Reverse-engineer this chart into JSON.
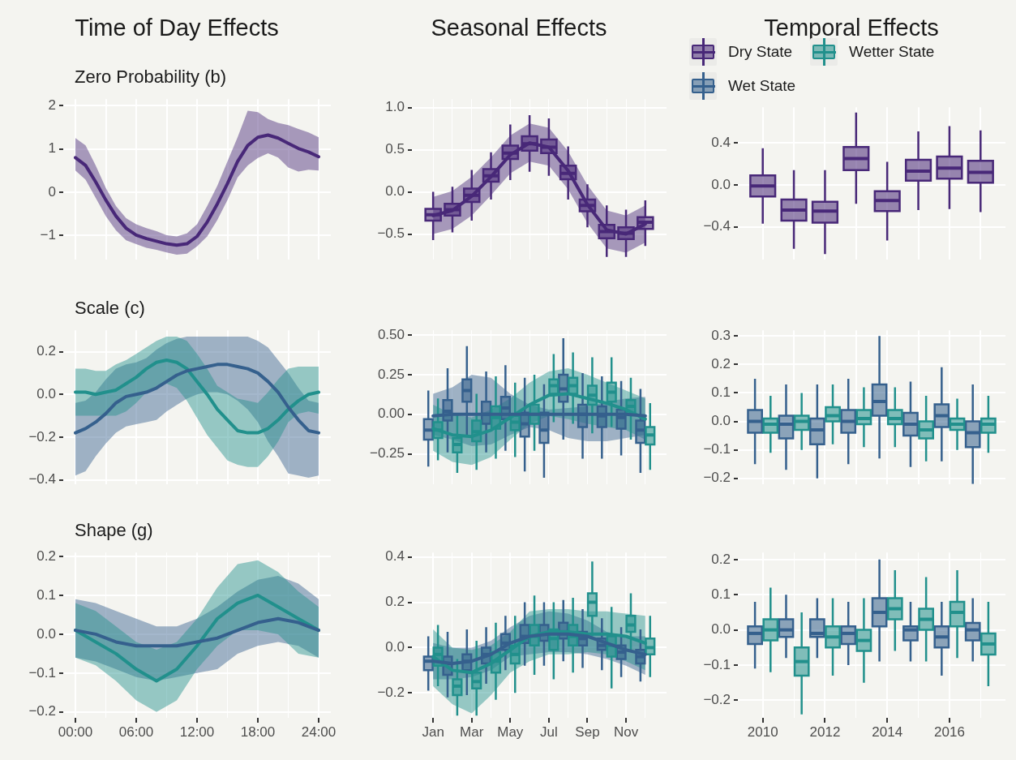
{
  "chart_data": [
    {
      "type": "line",
      "title": "Time of Day Effects",
      "subtitle": "Zero Probability (b)",
      "xlim": [
        -1.2,
        25.2
      ],
      "xticks": [
        0,
        3,
        6,
        9,
        12,
        15,
        18,
        21,
        24
      ],
      "ylim": [
        -1.55,
        2.15
      ],
      "yticks": [
        {
          "value": -1,
          "label": "−1"
        },
        0,
        1,
        2
      ],
      "tick_labels": "y",
      "grid": true,
      "series": [
        {
          "color": "#482878",
          "x": [
            0,
            1,
            2,
            3,
            4,
            5,
            6,
            7,
            8,
            9,
            10,
            11,
            12,
            13,
            14,
            15,
            16,
            17,
            18,
            19,
            20,
            21,
            22,
            23,
            24
          ],
          "values": [
            0.8,
            0.62,
            0.24,
            -0.18,
            -0.55,
            -0.83,
            -0.99,
            -1.07,
            -1.13,
            -1.19,
            -1.22,
            -1.19,
            -1.02,
            -0.69,
            -0.27,
            0.2,
            0.71,
            1.08,
            1.27,
            1.32,
            1.25,
            1.13,
            1.01,
            0.93,
            0.82
          ],
          "lower": [
            0.5,
            0.29,
            -0.13,
            -0.55,
            -0.88,
            -1.11,
            -1.2,
            -1.28,
            -1.33,
            -1.39,
            -1.44,
            -1.42,
            -1.25,
            -1.02,
            -0.64,
            -0.18,
            0.34,
            0.62,
            0.79,
            0.9,
            0.8,
            0.57,
            0.48,
            0.52,
            0.5
          ],
          "upper": [
            1.25,
            1.08,
            0.62,
            0.1,
            -0.32,
            -0.6,
            -0.74,
            -0.83,
            -0.9,
            -0.99,
            -1.02,
            -0.95,
            -0.74,
            -0.32,
            0.15,
            0.71,
            1.27,
            1.88,
            1.85,
            1.69,
            1.6,
            1.55,
            1.46,
            1.38,
            1.27
          ]
        }
      ]
    },
    {
      "type": "box",
      "title": "Seasonal Effects",
      "categories": [
        null,
        null,
        null,
        null,
        null,
        null,
        null,
        null,
        null,
        null,
        null,
        null
      ],
      "ylim": [
        -0.8,
        1.1
      ],
      "yticks": [
        {
          "value": -0.5,
          "label": "−0.5"
        },
        {
          "value": 0,
          "label": "0.0"
        },
        0.5,
        {
          "value": 1,
          "label": "1.0"
        }
      ],
      "tick_labels": "y",
      "grid": true,
      "series": [
        {
          "color": "#482878",
          "boxes": [
            {
              "low": -0.57,
              "q1": -0.34,
              "median": -0.27,
              "q3": -0.2,
              "high": 0.0
            },
            {
              "low": -0.48,
              "q1": -0.28,
              "median": -0.21,
              "q3": -0.14,
              "high": 0.06
            },
            {
              "low": -0.34,
              "q1": -0.12,
              "median": -0.04,
              "q3": 0.04,
              "high": 0.26
            },
            {
              "low": -0.09,
              "q1": 0.12,
              "median": 0.19,
              "q3": 0.27,
              "high": 0.47
            },
            {
              "low": 0.14,
              "q1": 0.39,
              "median": 0.46,
              "q3": 0.55,
              "high": 0.8
            },
            {
              "low": 0.24,
              "q1": 0.49,
              "median": 0.57,
              "q3": 0.66,
              "high": 0.91
            },
            {
              "low": 0.19,
              "q1": 0.46,
              "median": 0.53,
              "q3": 0.62,
              "high": 0.87
            },
            {
              "low": -0.09,
              "q1": 0.15,
              "median": 0.22,
              "q3": 0.31,
              "high": 0.54
            },
            {
              "low": -0.42,
              "q1": -0.23,
              "median": -0.16,
              "q3": -0.09,
              "high": 0.09
            },
            {
              "low": -0.77,
              "q1": -0.55,
              "median": -0.47,
              "q3": -0.39,
              "high": -0.16
            },
            {
              "low": -0.77,
              "q1": -0.56,
              "median": -0.49,
              "q3": -0.42,
              "high": -0.21
            },
            {
              "low": -0.64,
              "q1": -0.44,
              "median": -0.36,
              "q3": -0.3,
              "high": -0.1
            }
          ]
        },
        {
          "type": "line",
          "color": "#482878",
          "values": [
            -0.28,
            -0.22,
            -0.05,
            0.18,
            0.44,
            0.58,
            0.53,
            0.25,
            -0.15,
            -0.45,
            -0.5,
            -0.38
          ],
          "lower": [
            -0.5,
            -0.44,
            -0.28,
            -0.04,
            0.22,
            0.36,
            0.31,
            0.03,
            -0.37,
            -0.67,
            -0.72,
            -0.6
          ],
          "upper": [
            -0.06,
            0.01,
            0.18,
            0.41,
            0.67,
            0.81,
            0.76,
            0.48,
            0.08,
            -0.22,
            -0.28,
            -0.16
          ]
        }
      ]
    },
    {
      "type": "box",
      "title": "Temporal Effects",
      "legend": "top",
      "xlim": [
        2009.2,
        2017.8
      ],
      "xticks": [
        2010,
        2011,
        2012,
        2013,
        2014,
        2015,
        2016,
        2017
      ],
      "ylim": [
        -0.71,
        0.74
      ],
      "yticks": [
        {
          "value": -0.4,
          "label": "−0.4"
        },
        {
          "value": 0,
          "label": "0.0"
        },
        0.4
      ],
      "tick_labels": "y",
      "grid": true,
      "series": [
        {
          "name": "Dry State",
          "color": "#482878",
          "x": [
            2010,
            2011,
            2012,
            2013,
            2014,
            2015,
            2016,
            2017
          ],
          "boxes": [
            {
              "low": -0.37,
              "q1": -0.11,
              "median": -0.01,
              "q3": 0.09,
              "high": 0.35
            },
            {
              "low": -0.61,
              "q1": -0.34,
              "median": -0.24,
              "q3": -0.14,
              "high": 0.14
            },
            {
              "low": -0.66,
              "q1": -0.36,
              "median": -0.25,
              "q3": -0.16,
              "high": 0.14
            },
            {
              "low": -0.18,
              "q1": 0.14,
              "median": 0.25,
              "q3": 0.36,
              "high": 0.69
            },
            {
              "low": -0.53,
              "q1": -0.25,
              "median": -0.15,
              "q3": -0.06,
              "high": 0.22
            },
            {
              "low": -0.24,
              "q1": 0.04,
              "median": 0.13,
              "q3": 0.24,
              "high": 0.51
            },
            {
              "low": -0.23,
              "q1": 0.06,
              "median": 0.16,
              "q3": 0.27,
              "high": 0.56
            },
            {
              "low": -0.26,
              "q1": 0.02,
              "median": 0.12,
              "q3": 0.23,
              "high": 0.52
            }
          ]
        }
      ]
    },
    {
      "type": "line",
      "title": "Scale (c)",
      "xlim": [
        -1.2,
        25.2
      ],
      "xticks": [
        0,
        3,
        6,
        9,
        12,
        15,
        18,
        21,
        24
      ],
      "ylim": [
        -0.42,
        0.3
      ],
      "yticks": [
        {
          "value": -0.4,
          "label": "−0.4"
        },
        {
          "value": -0.2,
          "label": "−0.2"
        },
        {
          "value": 0,
          "label": "0.0"
        },
        0.2
      ],
      "tick_labels": "y",
      "grid": true,
      "series": [
        {
          "color": "#35608d",
          "x": [
            0,
            1,
            2,
            3,
            4,
            5,
            6,
            7,
            8,
            9,
            10,
            11,
            12,
            13,
            14,
            15,
            16,
            17,
            18,
            19,
            20,
            21,
            22,
            23,
            24
          ],
          "values": [
            -0.18,
            -0.16,
            -0.13,
            -0.09,
            -0.04,
            -0.01,
            0.0,
            0.01,
            0.03,
            0.06,
            0.09,
            0.11,
            0.12,
            0.13,
            0.14,
            0.14,
            0.13,
            0.12,
            0.1,
            0.06,
            0.01,
            -0.06,
            -0.12,
            -0.17,
            -0.18
          ],
          "lower": [
            -0.38,
            -0.36,
            -0.29,
            -0.23,
            -0.18,
            -0.15,
            -0.14,
            -0.13,
            -0.12,
            -0.08,
            -0.05,
            -0.02,
            0.0,
            0.01,
            0.01,
            0.0,
            -0.03,
            -0.07,
            -0.13,
            -0.22,
            -0.29,
            -0.37,
            -0.38,
            -0.39,
            -0.38
          ],
          "upper": [
            -0.04,
            -0.03,
            0.01,
            0.07,
            0.12,
            0.14,
            0.15,
            0.17,
            0.21,
            0.24,
            0.26,
            0.27,
            0.27,
            0.27,
            0.27,
            0.27,
            0.27,
            0.27,
            0.25,
            0.22,
            0.16,
            0.1,
            0.03,
            -0.03,
            -0.04
          ]
        },
        {
          "color": "#21908c",
          "x": [
            0,
            1,
            2,
            3,
            4,
            5,
            6,
            7,
            8,
            9,
            10,
            11,
            12,
            13,
            14,
            15,
            16,
            17,
            18,
            19,
            20,
            21,
            22,
            23,
            24
          ],
          "values": [
            0.01,
            0.01,
            0.0,
            0.01,
            0.02,
            0.05,
            0.08,
            0.12,
            0.15,
            0.16,
            0.15,
            0.12,
            0.06,
            0.0,
            -0.07,
            -0.12,
            -0.17,
            -0.18,
            -0.18,
            -0.16,
            -0.12,
            -0.07,
            -0.03,
            0.0,
            0.01
          ],
          "lower": [
            -0.1,
            -0.1,
            -0.1,
            -0.1,
            -0.1,
            -0.08,
            -0.04,
            0.01,
            0.04,
            0.05,
            0.03,
            -0.03,
            -0.11,
            -0.19,
            -0.25,
            -0.31,
            -0.33,
            -0.34,
            -0.34,
            -0.29,
            -0.22,
            -0.13,
            -0.09,
            -0.08,
            -0.09
          ],
          "upper": [
            0.12,
            0.12,
            0.11,
            0.11,
            0.14,
            0.16,
            0.19,
            0.22,
            0.25,
            0.27,
            0.27,
            0.25,
            0.19,
            0.12,
            0.04,
            0.01,
            -0.02,
            -0.03,
            -0.04,
            0.01,
            0.07,
            0.12,
            0.13,
            0.13,
            0.13
          ]
        }
      ]
    },
    {
      "type": "box",
      "categories": [
        null,
        null,
        null,
        null,
        null,
        null,
        null,
        null,
        null,
        null,
        null,
        null
      ],
      "ylim": [
        -0.44,
        0.53
      ],
      "yticks": [
        {
          "value": -0.25,
          "label": "−0.25"
        },
        {
          "value": 0,
          "label": "0.00"
        },
        0.25,
        {
          "value": 0.5,
          "label": "0.50"
        }
      ],
      "tick_labels": "y",
      "grid": true,
      "series": [
        {
          "color": "#35608d",
          "boxes": [
            {
              "low": -0.33,
              "q1": -0.16,
              "median": -0.1,
              "q3": -0.03,
              "high": 0.15
            },
            {
              "low": -0.24,
              "q1": -0.04,
              "median": 0.02,
              "q3": 0.09,
              "high": 0.29
            },
            {
              "low": -0.13,
              "q1": 0.08,
              "median": 0.15,
              "q3": 0.22,
              "high": 0.43
            },
            {
              "low": -0.24,
              "q1": -0.06,
              "median": 0.0,
              "q3": 0.08,
              "high": 0.27
            },
            {
              "low": -0.23,
              "q1": -0.03,
              "median": 0.04,
              "q3": 0.11,
              "high": 0.31
            },
            {
              "low": -0.36,
              "q1": -0.14,
              "median": -0.06,
              "q3": 0.01,
              "high": 0.23
            },
            {
              "low": -0.4,
              "q1": -0.18,
              "median": -0.1,
              "q3": 0.01,
              "high": 0.19
            },
            {
              "low": -0.16,
              "q1": 0.08,
              "median": 0.16,
              "q3": 0.25,
              "high": 0.48
            },
            {
              "low": -0.28,
              "q1": -0.08,
              "median": 0.0,
              "q3": 0.06,
              "high": 0.26
            },
            {
              "low": -0.28,
              "q1": -0.08,
              "median": -0.01,
              "q3": 0.05,
              "high": 0.24
            },
            {
              "low": -0.26,
              "q1": -0.09,
              "median": -0.02,
              "q3": 0.03,
              "high": 0.21
            },
            {
              "low": -0.37,
              "q1": -0.18,
              "median": -0.1,
              "q3": -0.04,
              "high": 0.16
            }
          ]
        },
        {
          "color": "#21908c",
          "boxes": [
            {
              "low": -0.29,
              "q1": -0.15,
              "median": -0.1,
              "q3": -0.05,
              "high": 0.1
            },
            {
              "low": -0.37,
              "q1": -0.24,
              "median": -0.19,
              "q3": -0.15,
              "high": 0.0
            },
            {
              "low": -0.35,
              "q1": -0.17,
              "median": -0.11,
              "q3": -0.04,
              "high": 0.13
            },
            {
              "low": -0.28,
              "q1": -0.09,
              "median": -0.02,
              "q3": 0.05,
              "high": 0.24
            },
            {
              "low": -0.27,
              "q1": -0.1,
              "median": -0.05,
              "q3": -0.01,
              "high": 0.2
            },
            {
              "low": -0.23,
              "q1": -0.06,
              "median": 0.0,
              "q3": 0.06,
              "high": 0.25
            },
            {
              "low": -0.05,
              "q1": 0.13,
              "median": 0.18,
              "q3": 0.22,
              "high": 0.38
            },
            {
              "low": -0.06,
              "q1": 0.13,
              "median": 0.18,
              "q3": 0.23,
              "high": 0.39
            },
            {
              "low": -0.12,
              "q1": 0.06,
              "median": 0.12,
              "q3": 0.18,
              "high": 0.36
            },
            {
              "low": -0.08,
              "q1": 0.08,
              "median": 0.14,
              "q3": 0.2,
              "high": 0.36
            },
            {
              "low": -0.16,
              "q1": 0.0,
              "median": 0.05,
              "q3": 0.09,
              "high": 0.23
            },
            {
              "low": -0.35,
              "q1": -0.19,
              "median": -0.13,
              "q3": -0.08,
              "high": 0.07
            }
          ]
        },
        {
          "type": "line",
          "color": "#35608d",
          "values": [
            -0.01,
            0.0,
            0.0,
            0.0,
            0.0,
            0.0,
            0.0,
            0.0,
            0.0,
            0.0,
            0.0,
            -0.01
          ],
          "lower": [
            -0.13,
            -0.16,
            -0.2,
            -0.19,
            -0.13,
            -0.08,
            -0.1,
            -0.15,
            -0.17,
            -0.17,
            -0.15,
            -0.13
          ],
          "upper": [
            0.13,
            0.17,
            0.25,
            0.23,
            0.13,
            0.06,
            0.03,
            0.04,
            0.05,
            0.08,
            0.1,
            0.11
          ]
        },
        {
          "type": "line",
          "color": "#21908c",
          "values": [
            -0.09,
            -0.13,
            -0.14,
            -0.1,
            -0.02,
            0.06,
            0.12,
            0.13,
            0.1,
            0.07,
            0.03,
            -0.03
          ],
          "lower": [
            -0.23,
            -0.3,
            -0.32,
            -0.27,
            -0.16,
            -0.06,
            -0.01,
            -0.03,
            -0.06,
            -0.08,
            -0.1,
            -0.16
          ],
          "upper": [
            0.06,
            0.0,
            -0.02,
            0.03,
            0.1,
            0.2,
            0.27,
            0.29,
            0.25,
            0.2,
            0.15,
            0.1
          ]
        }
      ]
    },
    {
      "type": "box",
      "legend": "top",
      "xlim": [
        2009.2,
        2017.8
      ],
      "xticks": [
        2010,
        2011,
        2012,
        2013,
        2014,
        2015,
        2016,
        2017
      ],
      "ylim": [
        -0.22,
        0.32
      ],
      "yticks": [
        {
          "value": -0.2,
          "label": "−0.2"
        },
        {
          "value": -0.1,
          "label": "−0.1"
        },
        {
          "value": 0,
          "label": "0.0"
        },
        0.1,
        0.2,
        0.3
      ],
      "tick_labels": "y",
      "grid": true,
      "series": [
        {
          "name": "Wet State",
          "color": "#35608d",
          "x": [
            2010,
            2011,
            2012,
            2013,
            2014,
            2015,
            2016,
            2017
          ],
          "boxes": [
            {
              "low": -0.15,
              "q1": -0.04,
              "median": 0.0,
              "q3": 0.04,
              "high": 0.15
            },
            {
              "low": -0.17,
              "q1": -0.06,
              "median": -0.01,
              "q3": 0.02,
              "high": 0.13
            },
            {
              "low": -0.2,
              "q1": -0.08,
              "median": -0.03,
              "q3": 0.01,
              "high": 0.13
            },
            {
              "low": -0.15,
              "q1": -0.04,
              "median": 0.0,
              "q3": 0.04,
              "high": 0.15
            },
            {
              "low": -0.13,
              "q1": 0.02,
              "median": 0.07,
              "q3": 0.13,
              "high": 0.3
            },
            {
              "low": -0.16,
              "q1": -0.05,
              "median": -0.01,
              "q3": 0.03,
              "high": 0.14
            },
            {
              "low": -0.14,
              "q1": -0.02,
              "median": 0.02,
              "q3": 0.06,
              "high": 0.19
            },
            {
              "low": -0.22,
              "q1": -0.09,
              "median": -0.04,
              "q3": 0.0,
              "high": 0.13
            }
          ]
        },
        {
          "name": "Wetter State",
          "color": "#21908c",
          "x": [
            2010,
            2011,
            2012,
            2013,
            2014,
            2015,
            2016,
            2017
          ],
          "boxes": [
            {
              "low": -0.11,
              "q1": -0.04,
              "median": -0.01,
              "q3": 0.01,
              "high": 0.09
            },
            {
              "low": -0.1,
              "q1": -0.03,
              "median": 0.0,
              "q3": 0.02,
              "high": 0.1
            },
            {
              "low": -0.08,
              "q1": 0.0,
              "median": 0.02,
              "q3": 0.05,
              "high": 0.13
            },
            {
              "low": -0.09,
              "q1": -0.01,
              "median": 0.01,
              "q3": 0.04,
              "high": 0.12
            },
            {
              "low": -0.09,
              "q1": -0.01,
              "median": 0.01,
              "q3": 0.04,
              "high": 0.12
            },
            {
              "low": -0.14,
              "q1": -0.06,
              "median": -0.03,
              "q3": 0.0,
              "high": 0.09
            },
            {
              "low": -0.1,
              "q1": -0.03,
              "median": -0.01,
              "q3": 0.01,
              "high": 0.08
            },
            {
              "low": -0.11,
              "q1": -0.04,
              "median": -0.01,
              "q3": 0.01,
              "high": 0.09
            }
          ]
        }
      ]
    },
    {
      "type": "line",
      "title": "Shape (g)",
      "xlim": [
        -1.2,
        25.2
      ],
      "xticks": [
        {
          "value": 0,
          "label": "00:00"
        },
        {
          "value": 3,
          "label": null
        },
        {
          "value": 6,
          "label": "06:00"
        },
        {
          "value": 9,
          "label": null
        },
        {
          "value": 12,
          "label": "12:00"
        },
        {
          "value": 15,
          "label": null
        },
        {
          "value": 18,
          "label": "18:00"
        },
        {
          "value": 21,
          "label": null
        },
        {
          "value": 24,
          "label": "24:00"
        }
      ],
      "ylim": [
        -0.215,
        0.21
      ],
      "yticks": [
        {
          "value": -0.2,
          "label": "−0.2"
        },
        {
          "value": -0.1,
          "label": "−0.1"
        },
        {
          "value": 0,
          "label": "0.0"
        },
        0.1,
        0.2
      ],
      "grid": true,
      "series": [
        {
          "color": "#35608d",
          "x": [
            0,
            2,
            4,
            6,
            8,
            10,
            12,
            14,
            16,
            18,
            20,
            22,
            24
          ],
          "values": [
            0.01,
            0.0,
            -0.02,
            -0.03,
            -0.03,
            -0.03,
            -0.02,
            -0.01,
            0.01,
            0.03,
            0.04,
            0.03,
            0.01
          ],
          "lower": [
            -0.06,
            -0.07,
            -0.09,
            -0.11,
            -0.12,
            -0.11,
            -0.1,
            -0.09,
            -0.05,
            -0.03,
            -0.02,
            -0.03,
            -0.06
          ],
          "upper": [
            0.09,
            0.08,
            0.06,
            0.04,
            0.02,
            0.02,
            0.04,
            0.07,
            0.11,
            0.14,
            0.15,
            0.13,
            0.09
          ]
        },
        {
          "color": "#21908c",
          "x": [
            0,
            2,
            4,
            6,
            8,
            10,
            12,
            14,
            16,
            18,
            20,
            22,
            24
          ],
          "values": [
            0.01,
            -0.02,
            -0.05,
            -0.09,
            -0.12,
            -0.09,
            -0.03,
            0.04,
            0.08,
            0.1,
            0.07,
            0.04,
            0.01
          ],
          "lower": [
            -0.06,
            -0.08,
            -0.12,
            -0.17,
            -0.2,
            -0.17,
            -0.09,
            -0.03,
            0.01,
            0.01,
            0.0,
            -0.05,
            -0.06
          ],
          "upper": [
            0.08,
            0.06,
            0.02,
            -0.02,
            -0.04,
            -0.02,
            0.04,
            0.12,
            0.18,
            0.19,
            0.16,
            0.11,
            0.07
          ]
        }
      ]
    },
    {
      "type": "box",
      "categories": [
        "Jan",
        null,
        "Mar",
        null,
        "May",
        null,
        "Jul",
        null,
        "Sep",
        null,
        "Nov",
        null
      ],
      "ylim": [
        -0.31,
        0.42
      ],
      "yticks": [
        {
          "value": -0.2,
          "label": "−0.2"
        },
        {
          "value": 0,
          "label": "0.0"
        },
        0.2,
        0.4
      ],
      "grid": true,
      "series": [
        {
          "color": "#35608d",
          "boxes": [
            {
              "low": -0.19,
              "q1": -0.1,
              "median": -0.06,
              "q3": -0.04,
              "high": 0.05
            },
            {
              "low": -0.22,
              "q1": -0.12,
              "median": -0.07,
              "q3": -0.04,
              "high": 0.07
            },
            {
              "low": -0.21,
              "q1": -0.1,
              "median": -0.06,
              "q3": -0.03,
              "high": 0.08
            },
            {
              "low": -0.16,
              "q1": -0.07,
              "median": -0.03,
              "q3": 0.0,
              "high": 0.09
            },
            {
              "low": -0.1,
              "q1": -0.01,
              "median": 0.02,
              "q3": 0.06,
              "high": 0.14
            },
            {
              "low": -0.08,
              "q1": 0.02,
              "median": 0.05,
              "q3": 0.1,
              "high": 0.2
            },
            {
              "low": -0.08,
              "q1": 0.03,
              "median": 0.06,
              "q3": 0.1,
              "high": 0.2
            },
            {
              "low": -0.06,
              "q1": 0.04,
              "median": 0.07,
              "q3": 0.11,
              "high": 0.21
            },
            {
              "low": -0.09,
              "q1": 0.01,
              "median": 0.04,
              "q3": 0.07,
              "high": 0.17
            },
            {
              "low": -0.1,
              "q1": -0.01,
              "median": 0.01,
              "q3": 0.04,
              "high": 0.13
            },
            {
              "low": -0.13,
              "q1": -0.05,
              "median": -0.02,
              "q3": 0.01,
              "high": 0.09
            },
            {
              "low": -0.15,
              "q1": -0.07,
              "median": -0.04,
              "q3": -0.01,
              "high": 0.08
            }
          ]
        },
        {
          "color": "#21908c",
          "boxes": [
            {
              "low": -0.17,
              "q1": -0.08,
              "median": -0.03,
              "q3": 0.0,
              "high": 0.1
            },
            {
              "low": -0.3,
              "q1": -0.21,
              "median": -0.17,
              "q3": -0.14,
              "high": -0.05
            },
            {
              "low": -0.3,
              "q1": -0.18,
              "median": -0.15,
              "q3": -0.11,
              "high": 0.03
            },
            {
              "low": -0.23,
              "q1": -0.11,
              "median": -0.06,
              "q3": -0.02,
              "high": 0.11
            },
            {
              "low": -0.2,
              "q1": -0.07,
              "median": -0.03,
              "q3": 0.01,
              "high": 0.14
            },
            {
              "low": -0.12,
              "q1": 0.01,
              "median": 0.05,
              "q3": 0.1,
              "high": 0.23
            },
            {
              "low": -0.14,
              "q1": -0.01,
              "median": 0.04,
              "q3": 0.08,
              "high": 0.2
            },
            {
              "low": -0.11,
              "q1": 0.01,
              "median": 0.05,
              "q3": 0.1,
              "high": 0.22
            },
            {
              "low": 0.05,
              "q1": 0.14,
              "median": 0.2,
              "q3": 0.24,
              "high": 0.38
            },
            {
              "low": -0.18,
              "q1": -0.04,
              "median": 0.01,
              "q3": 0.05,
              "high": 0.18
            },
            {
              "low": -0.02,
              "q1": 0.07,
              "median": 0.1,
              "q3": 0.14,
              "high": 0.24
            },
            {
              "low": -0.13,
              "q1": -0.03,
              "median": 0.0,
              "q3": 0.04,
              "high": 0.14
            }
          ]
        },
        {
          "type": "line",
          "color": "#35608d",
          "values": [
            -0.06,
            -0.07,
            -0.06,
            -0.03,
            0.02,
            0.05,
            0.06,
            0.06,
            0.05,
            0.02,
            -0.01,
            -0.03
          ],
          "lower": [
            -0.14,
            -0.14,
            -0.13,
            -0.1,
            -0.04,
            -0.03,
            -0.02,
            -0.02,
            -0.03,
            -0.05,
            -0.08,
            -0.12
          ],
          "upper": [
            0.02,
            0.0,
            0.0,
            0.03,
            0.09,
            0.14,
            0.16,
            0.15,
            0.12,
            0.07,
            0.05,
            0.05
          ]
        },
        {
          "type": "line",
          "color": "#21908c",
          "values": [
            -0.04,
            -0.1,
            -0.11,
            -0.07,
            -0.01,
            0.05,
            0.07,
            0.07,
            0.06,
            0.06,
            0.05,
            0.02
          ],
          "lower": [
            -0.17,
            -0.25,
            -0.29,
            -0.21,
            -0.11,
            -0.06,
            -0.03,
            -0.03,
            -0.02,
            -0.03,
            -0.06,
            -0.1
          ],
          "upper": [
            0.08,
            0.0,
            -0.01,
            0.01,
            0.07,
            0.16,
            0.17,
            0.17,
            0.16,
            0.16,
            0.15,
            0.14
          ]
        }
      ]
    },
    {
      "type": "box",
      "xlim": [
        2009.2,
        2017.8
      ],
      "xticks": [
        2010,
        {
          "value": 2011,
          "label": null
        },
        2012,
        {
          "value": 2013,
          "label": null
        },
        2014,
        {
          "value": 2015,
          "label": null
        },
        2016,
        {
          "value": 2017,
          "label": null
        }
      ],
      "ylim": [
        -0.25,
        0.22
      ],
      "yticks": [
        {
          "value": -0.2,
          "label": "−0.2"
        },
        {
          "value": -0.1,
          "label": "−0.1"
        },
        {
          "value": 0,
          "label": "0.0"
        },
        0.1,
        0.2
      ],
      "grid": true,
      "series": [
        {
          "color": "#35608d",
          "x": [
            2010,
            2011,
            2012,
            2013,
            2014,
            2015,
            2016,
            2017
          ],
          "boxes": [
            {
              "low": -0.11,
              "q1": -0.04,
              "median": -0.01,
              "q3": 0.01,
              "high": 0.08
            },
            {
              "low": -0.08,
              "q1": -0.02,
              "median": 0.0,
              "q3": 0.03,
              "high": 0.1
            },
            {
              "low": -0.08,
              "q1": -0.02,
              "median": -0.01,
              "q3": 0.03,
              "high": 0.09
            },
            {
              "low": -0.1,
              "q1": -0.04,
              "median": -0.01,
              "q3": 0.01,
              "high": 0.08
            },
            {
              "low": -0.09,
              "q1": 0.01,
              "median": 0.05,
              "q3": 0.09,
              "high": 0.2
            },
            {
              "low": -0.09,
              "q1": -0.03,
              "median": 0.0,
              "q3": 0.01,
              "high": 0.08
            },
            {
              "low": -0.13,
              "q1": -0.05,
              "median": -0.02,
              "q3": 0.01,
              "high": 0.08
            },
            {
              "low": -0.09,
              "q1": -0.03,
              "median": 0.0,
              "q3": 0.02,
              "high": 0.09
            }
          ]
        },
        {
          "color": "#21908c",
          "x": [
            2010,
            2011,
            2012,
            2013,
            2014,
            2015,
            2016,
            2017
          ],
          "boxes": [
            {
              "low": -0.12,
              "q1": -0.03,
              "median": 0.0,
              "q3": 0.03,
              "high": 0.12
            },
            {
              "low": -0.24,
              "q1": -0.13,
              "median": -0.09,
              "q3": -0.05,
              "high": 0.05
            },
            {
              "low": -0.13,
              "q1": -0.05,
              "median": -0.02,
              "q3": 0.01,
              "high": 0.09
            },
            {
              "low": -0.15,
              "q1": -0.06,
              "median": -0.03,
              "q3": 0.0,
              "high": 0.09
            },
            {
              "low": -0.06,
              "q1": 0.03,
              "median": 0.06,
              "q3": 0.09,
              "high": 0.17
            },
            {
              "low": -0.09,
              "q1": 0.0,
              "median": 0.03,
              "q3": 0.06,
              "high": 0.15
            },
            {
              "low": -0.08,
              "q1": 0.01,
              "median": 0.05,
              "q3": 0.08,
              "high": 0.17
            },
            {
              "low": -0.16,
              "q1": -0.07,
              "median": -0.04,
              "q3": -0.01,
              "high": 0.08
            }
          ]
        }
      ]
    }
  ]
}
